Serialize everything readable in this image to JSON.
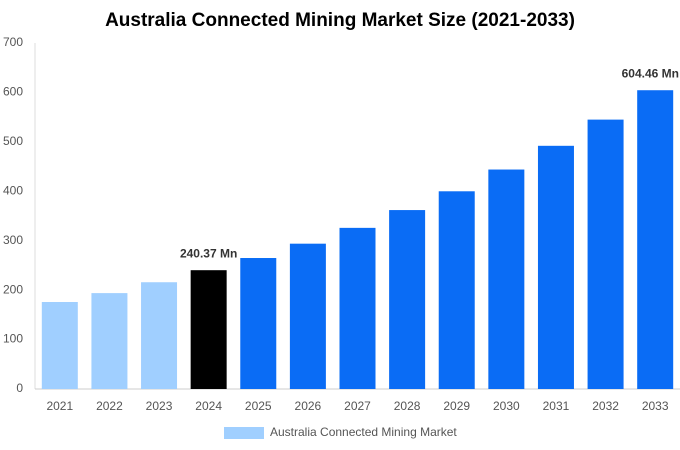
{
  "chart_data": {
    "type": "bar",
    "title": "Australia Connected Mining Market Size (2021-2033)",
    "categories": [
      "2021",
      "2022",
      "2023",
      "2024",
      "2025",
      "2026",
      "2027",
      "2028",
      "2029",
      "2030",
      "2031",
      "2032",
      "2033"
    ],
    "series": [
      {
        "name": "Australia Connected Mining Market",
        "color": "#a0cfff",
        "values": [
          176,
          194,
          216,
          240.37,
          265,
          294,
          326,
          362,
          400,
          444,
          492,
          545,
          604.46
        ],
        "colors": [
          "#a0cfff",
          "#a0cfff",
          "#a0cfff",
          "#000000",
          "#0a6cf5",
          "#0a6cf5",
          "#0a6cf5",
          "#0a6cf5",
          "#0a6cf5",
          "#0a6cf5",
          "#0a6cf5",
          "#0a6cf5",
          "#0a6cf5"
        ],
        "value_labels": [
          null,
          null,
          null,
          "240.37 Mn",
          null,
          null,
          null,
          null,
          null,
          null,
          null,
          null,
          "604.46 Mn"
        ]
      }
    ],
    "ylim": [
      0,
      700
    ],
    "yticks": [
      0,
      100,
      200,
      300,
      400,
      500,
      600,
      700
    ],
    "grid": false
  }
}
